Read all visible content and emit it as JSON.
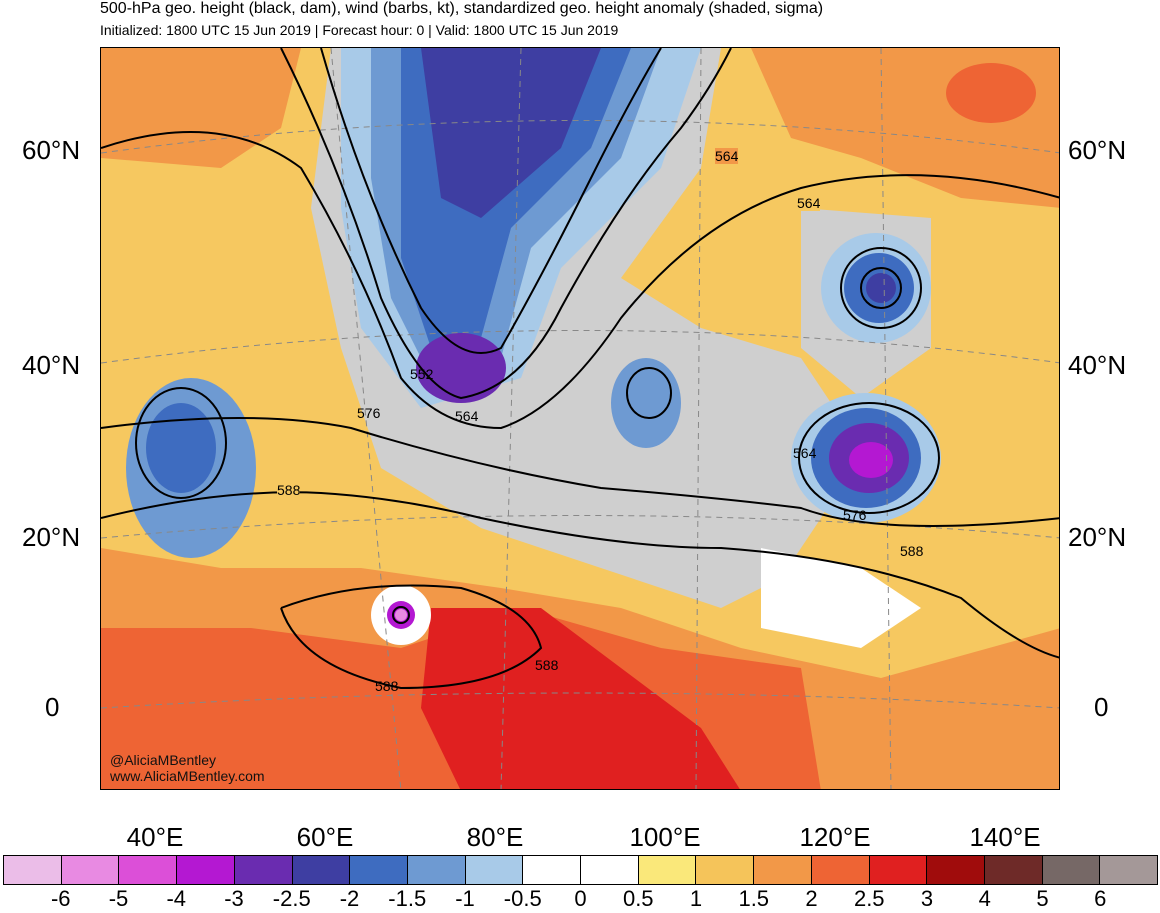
{
  "header": {
    "title": "500-hPa geo. height (black, dam), wind (barbs, kt), standardized geo. height anomaly (shaded, sigma)",
    "subtitle": "Initialized: 1800 UTC 15 Jun 2019 | Forecast hour: 0 | Valid: 1800 UTC 15 Jun 2019"
  },
  "axes": {
    "lat_labels": [
      "60°N",
      "40°N",
      "20°N",
      "0"
    ],
    "lon_labels": [
      "40°E",
      "60°E",
      "80°E",
      "100°E",
      "120°E",
      "140°E"
    ]
  },
  "contour_labels": [
    "564",
    "564",
    "552",
    "564",
    "576",
    "564",
    "588",
    "576",
    "588",
    "588",
    "588"
  ],
  "credit": {
    "handle": "@AliciaMBentley",
    "site": "www.AliciaMBentley.com"
  },
  "colorbar": {
    "labels": [
      "-6",
      "-5",
      "-4",
      "-3",
      "-2.5",
      "-2",
      "-1.5",
      "-1",
      "-0.5",
      "0",
      "0.5",
      "1",
      "1.5",
      "2",
      "2.5",
      "3",
      "4",
      "5",
      "6"
    ],
    "colors": [
      "#ebbde8",
      "#e88ae2",
      "#dc4fd8",
      "#b418d2",
      "#6a2cb0",
      "#3e3ea2",
      "#3e6cc0",
      "#6e9ad2",
      "#a8cae8",
      "#ffffff",
      "#ffffff",
      "#fae87a",
      "#f5c45a",
      "#f29848",
      "#ee6434",
      "#e02020",
      "#a00c0c",
      "#6e2a28",
      "#766866",
      "#a49898"
    ]
  }
}
